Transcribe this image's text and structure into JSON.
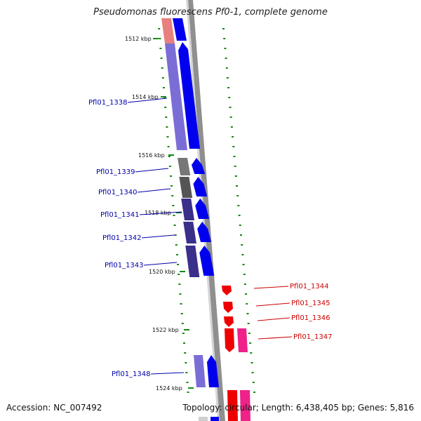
{
  "title": "Pseudomonas fluorescens Pf0-1, complete genome",
  "accession_label": "Accession: NC_007492",
  "summary_label": "Topology: circular; Length: 6,438,405 bp; Genes: 5,816",
  "colors": {
    "backbone": "#8f8f8f",
    "forward_gene": "#0000ee",
    "forward_cds_violet": "#7a6ed6",
    "forward_cds_dark": "#3a2f8a",
    "reverse_gene": "#ee0000",
    "reverse_cds_pink": "#ee2288",
    "tick_green": "#118811",
    "label_blue": "#0000aa",
    "label_red": "#cc0000"
  },
  "ticks": [
    "1512 kbp",
    "1514 kbp",
    "1516 kbp",
    "1518 kbp",
    "1520 kbp",
    "1522 kbp",
    "1524 kbp"
  ],
  "forward_genes": [
    "Pfl01_1338",
    "Pfl01_1339",
    "Pfl01_1340",
    "Pfl01_1341",
    "Pfl01_1342",
    "Pfl01_1343",
    "Pfl01_1348"
  ],
  "reverse_genes": [
    "Pfl01_1344",
    "Pfl01_1345",
    "Pfl01_1346",
    "Pfl01_1347"
  ]
}
